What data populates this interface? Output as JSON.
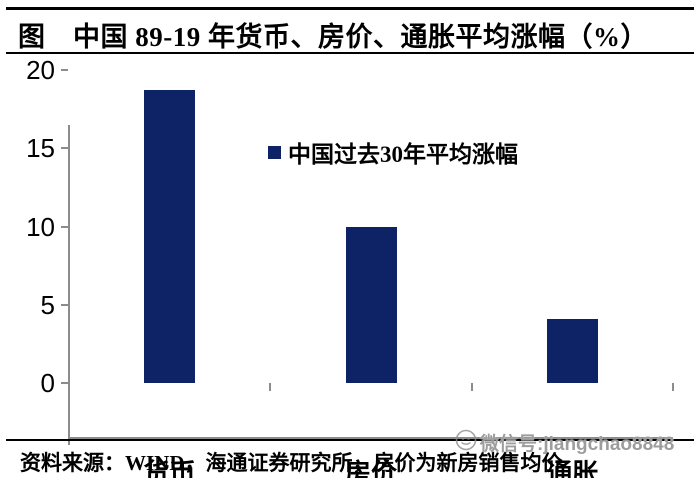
{
  "title": "图　中国 89-19 年货币、房价、通胀平均涨幅（%）",
  "legend": {
    "label": "中国过去30年平均涨幅"
  },
  "footer": {
    "source": "资料来源：WIND，海通证券研究所，房价为新房销售均价"
  },
  "watermark": {
    "text": "微信号:jiangchao8848",
    "icon": "wechat-icon"
  },
  "colors": {
    "bar": "#0d2365",
    "axis": "#8c8c8c",
    "rule": "#000000",
    "watermark": "#8c8c8c"
  },
  "chart_data": {
    "type": "bar",
    "categories": [
      "货币",
      "房价",
      "通胀"
    ],
    "values": [
      18.7,
      10.0,
      4.1
    ],
    "series_name": "中国过去30年平均涨幅",
    "title": "图　中国 89-19 年货币、房价、通胀平均涨幅（%）",
    "xlabel": "",
    "ylabel": "",
    "ylim": [
      0,
      20
    ],
    "yticks": [
      0,
      5,
      10,
      15,
      20
    ],
    "grid": false,
    "legend_position": "top-center"
  }
}
